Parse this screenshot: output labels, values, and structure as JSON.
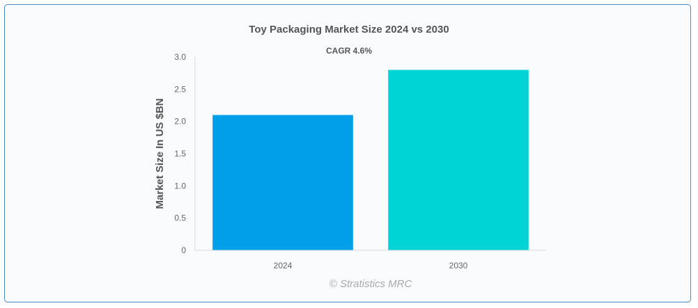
{
  "chart_data": {
    "type": "bar",
    "title": "Toy Packaging Market Size 2024 vs 2030",
    "subtitle": "CAGR 4.6%",
    "categories": [
      "2024",
      "2030"
    ],
    "values": [
      2.1,
      2.8
    ],
    "colors": [
      "#019ee9",
      "#00d4d4"
    ],
    "xlabel": "",
    "ylabel": "Market Size In US $BN",
    "ylim": [
      0,
      3.0
    ],
    "yticks": [
      "0",
      "0.5",
      "1.0",
      "1.5",
      "2.0",
      "2.5",
      "3.0"
    ],
    "grid": false,
    "legend": "none"
  },
  "watermark": "© Stratistics MRC"
}
